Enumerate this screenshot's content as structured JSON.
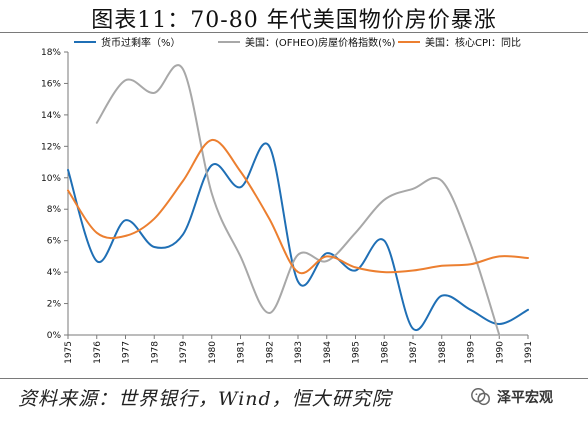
{
  "title": "图表11：70-80 年代美国物价房价暴涨",
  "source": "资料来源：世界银行，Wind，恒大研究院",
  "watermark": "泽平宏观",
  "colors": {
    "blue": "#1f6fb5",
    "gray": "#a8a8a8",
    "orange": "#ec7f30",
    "axis": "#7a7a7a"
  },
  "chart_data": {
    "type": "line",
    "x": [
      1975,
      1976,
      1977,
      1978,
      1979,
      1980,
      1981,
      1982,
      1983,
      1984,
      1985,
      1986,
      1987,
      1988,
      1989,
      1990,
      1991
    ],
    "x_tick_labels": [
      "1975",
      "1976",
      "1977",
      "1978",
      "1979",
      "1980",
      "1981",
      "1982",
      "1983",
      "1984",
      "1985",
      "1986",
      "1987",
      "1988",
      "1989",
      "1990",
      "1991"
    ],
    "y_tick_labels": [
      "0%",
      "2%",
      "4%",
      "6%",
      "8%",
      "10%",
      "12%",
      "14%",
      "16%",
      "18%"
    ],
    "ylim": [
      0,
      18
    ],
    "grid": false,
    "legend_position": "top",
    "series": [
      {
        "name": "货币过剩率（%）",
        "color": "#1f6fb5",
        "x": [
          1975,
          1976,
          1977,
          1978,
          1979,
          1980,
          1981,
          1982,
          1983,
          1984,
          1985,
          1986,
          1987,
          1988,
          1989,
          1990,
          1991
        ],
        "values": [
          10.5,
          4.7,
          7.3,
          5.6,
          6.4,
          10.8,
          9.4,
          12.0,
          3.4,
          5.2,
          4.1,
          6.0,
          0.4,
          2.5,
          1.6,
          0.7,
          1.6
        ]
      },
      {
        "name": "美国：(OFHEO)房屋价格指数(%)",
        "color": "#a8a8a8",
        "x": [
          1976,
          1977,
          1978,
          1979,
          1980,
          1981,
          1982,
          1983,
          1984,
          1985,
          1986,
          1987,
          1988,
          1989,
          1990
        ],
        "values": [
          13.5,
          16.2,
          15.4,
          16.9,
          9.0,
          5.0,
          1.4,
          5.1,
          4.7,
          6.5,
          8.6,
          9.3,
          9.8,
          5.8,
          0.0
        ]
      },
      {
        "name": "美国：核心CPI：同比",
        "color": "#ec7f30",
        "x": [
          1975,
          1976,
          1977,
          1978,
          1979,
          1980,
          1981,
          1982,
          1983,
          1984,
          1985,
          1986,
          1987,
          1988,
          1989,
          1990,
          1991
        ],
        "values": [
          9.2,
          6.5,
          6.3,
          7.4,
          9.8,
          12.4,
          10.4,
          7.4,
          4.0,
          5.0,
          4.3,
          4.0,
          4.1,
          4.4,
          4.5,
          5.0,
          4.9
        ]
      }
    ]
  }
}
